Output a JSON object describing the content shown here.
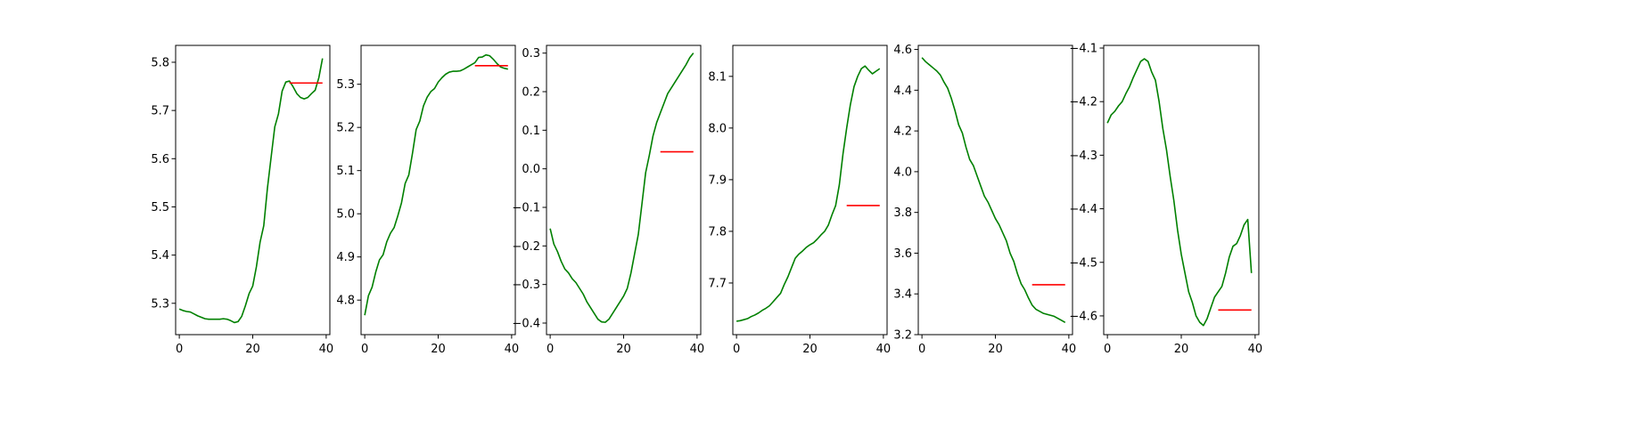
{
  "colors": {
    "series_main": "#008000",
    "series_pred": "#ff0000",
    "axis": "#000000",
    "background": "#ffffff"
  },
  "chart_data": [
    {
      "type": "line",
      "xlim": [
        -1,
        41
      ],
      "ylim": [
        5.235,
        5.835
      ],
      "xticks": [
        0,
        20,
        40
      ],
      "xtick_labels": [
        "0",
        "20",
        "40"
      ],
      "yticks": [
        5.3,
        5.4,
        5.5,
        5.6,
        5.7,
        5.8
      ],
      "ytick_labels": [
        "5.3",
        "5.4",
        "5.5",
        "5.6",
        "5.7",
        "5.8"
      ],
      "grid": false,
      "series": [
        {
          "kind": "main",
          "x": [
            0,
            1,
            2,
            3,
            4,
            5,
            6,
            7,
            8,
            9,
            10,
            11,
            12,
            13,
            14,
            15,
            16,
            17,
            18,
            19,
            20,
            21,
            22,
            23,
            24,
            25,
            26,
            27,
            28,
            29,
            30,
            31,
            32,
            33,
            34,
            35,
            36,
            37,
            38,
            39
          ],
          "y": [
            5.288,
            5.285,
            5.283,
            5.282,
            5.278,
            5.274,
            5.271,
            5.268,
            5.267,
            5.267,
            5.267,
            5.267,
            5.268,
            5.267,
            5.264,
            5.26,
            5.262,
            5.273,
            5.295,
            5.32,
            5.336,
            5.376,
            5.427,
            5.461,
            5.539,
            5.603,
            5.666,
            5.693,
            5.74,
            5.759,
            5.761,
            5.749,
            5.735,
            5.727,
            5.724,
            5.727,
            5.735,
            5.742,
            5.768,
            5.808
          ]
        },
        {
          "kind": "pred",
          "x": [
            30,
            39
          ],
          "y": [
            5.757,
            5.757
          ]
        }
      ]
    },
    {
      "type": "line",
      "xlim": [
        -1,
        41
      ],
      "ylim": [
        4.72,
        5.39
      ],
      "xticks": [
        0,
        20,
        40
      ],
      "xtick_labels": [
        "0",
        "20",
        "40"
      ],
      "yticks": [
        4.8,
        4.9,
        5.0,
        5.1,
        5.2,
        5.3
      ],
      "ytick_labels": [
        "4.8",
        "4.9",
        "5.0",
        "5.1",
        "5.2",
        "5.3"
      ],
      "grid": false,
      "series": [
        {
          "kind": "main",
          "x": [
            0,
            1,
            2,
            3,
            4,
            5,
            6,
            7,
            8,
            9,
            10,
            11,
            12,
            13,
            14,
            15,
            16,
            17,
            18,
            19,
            20,
            21,
            22,
            23,
            24,
            25,
            26,
            27,
            28,
            29,
            30,
            31,
            32,
            33,
            34,
            35,
            36,
            37,
            38,
            39
          ],
          "y": [
            4.765,
            4.81,
            4.83,
            4.865,
            4.893,
            4.905,
            4.935,
            4.955,
            4.968,
            4.995,
            5.025,
            5.07,
            5.09,
            5.14,
            5.195,
            5.215,
            5.25,
            5.27,
            5.283,
            5.29,
            5.305,
            5.315,
            5.323,
            5.328,
            5.33,
            5.33,
            5.331,
            5.335,
            5.34,
            5.345,
            5.35,
            5.362,
            5.363,
            5.368,
            5.366,
            5.358,
            5.348,
            5.34,
            5.337,
            5.335
          ]
        },
        {
          "kind": "pred",
          "x": [
            30,
            39
          ],
          "y": [
            5.343,
            5.343
          ]
        }
      ]
    },
    {
      "type": "line",
      "xlim": [
        -1,
        41
      ],
      "ylim": [
        -0.43,
        0.32
      ],
      "xticks": [
        0,
        20,
        40
      ],
      "xtick_labels": [
        "0",
        "20",
        "40"
      ],
      "yticks": [
        -0.4,
        -0.3,
        -0.2,
        -0.1,
        0.0,
        0.1,
        0.2,
        0.3
      ],
      "ytick_labels": [
        "−0.4",
        "−0.3",
        "−0.2",
        "−0.1",
        "0.0",
        "0.1",
        "0.2",
        "0.3"
      ],
      "grid": false,
      "series": [
        {
          "kind": "main",
          "x": [
            0,
            1,
            2,
            3,
            4,
            5,
            6,
            7,
            8,
            9,
            10,
            11,
            12,
            13,
            14,
            15,
            16,
            17,
            18,
            19,
            20,
            21,
            22,
            23,
            24,
            25,
            26,
            27,
            28,
            29,
            30,
            31,
            32,
            33,
            34,
            35,
            36,
            37,
            38,
            39
          ],
          "y": [
            -0.155,
            -0.195,
            -0.215,
            -0.24,
            -0.26,
            -0.27,
            -0.285,
            -0.295,
            -0.31,
            -0.325,
            -0.345,
            -0.36,
            -0.375,
            -0.39,
            -0.397,
            -0.398,
            -0.39,
            -0.375,
            -0.36,
            -0.345,
            -0.33,
            -0.31,
            -0.27,
            -0.22,
            -0.17,
            -0.09,
            -0.01,
            0.035,
            0.085,
            0.12,
            0.145,
            0.17,
            0.195,
            0.21,
            0.225,
            0.24,
            0.255,
            0.27,
            0.288,
            0.3
          ]
        },
        {
          "kind": "pred",
          "x": [
            30,
            39
          ],
          "y": [
            0.044,
            0.044
          ]
        }
      ]
    },
    {
      "type": "line",
      "xlim": [
        -1,
        41
      ],
      "ylim": [
        7.6,
        8.16
      ],
      "xticks": [
        0,
        20,
        40
      ],
      "xtick_labels": [
        "0",
        "20",
        "40"
      ],
      "yticks": [
        7.7,
        7.8,
        7.9,
        8.0,
        8.1
      ],
      "ytick_labels": [
        "7.7",
        "7.8",
        "7.9",
        "8.0",
        "8.1"
      ],
      "grid": false,
      "series": [
        {
          "kind": "main",
          "x": [
            0,
            1,
            2,
            3,
            4,
            5,
            6,
            7,
            8,
            9,
            10,
            11,
            12,
            13,
            14,
            15,
            16,
            17,
            18,
            19,
            20,
            21,
            22,
            23,
            24,
            25,
            26,
            27,
            28,
            29,
            30,
            31,
            32,
            33,
            34,
            35,
            36,
            37,
            38,
            39
          ],
          "y": [
            7.626,
            7.627,
            7.629,
            7.631,
            7.635,
            7.638,
            7.642,
            7.647,
            7.651,
            7.656,
            7.664,
            7.672,
            7.68,
            7.697,
            7.712,
            7.73,
            7.748,
            7.756,
            7.762,
            7.769,
            7.774,
            7.778,
            7.785,
            7.793,
            7.8,
            7.812,
            7.832,
            7.85,
            7.89,
            7.95,
            8.0,
            8.045,
            8.08,
            8.1,
            8.115,
            8.12,
            8.112,
            8.105,
            8.11,
            8.115
          ]
        },
        {
          "kind": "pred",
          "x": [
            30,
            39
          ],
          "y": [
            7.85,
            7.85
          ]
        }
      ]
    },
    {
      "type": "line",
      "xlim": [
        -1,
        41
      ],
      "ylim": [
        3.2,
        4.62
      ],
      "xticks": [
        0,
        20,
        40
      ],
      "xtick_labels": [
        "0",
        "20",
        "40"
      ],
      "yticks": [
        3.2,
        3.4,
        3.6,
        3.8,
        4.0,
        4.2,
        4.4,
        4.6
      ],
      "ytick_labels": [
        "3.2",
        "3.4",
        "3.6",
        "3.8",
        "4.0",
        "4.2",
        "4.4",
        "4.6"
      ],
      "grid": false,
      "series": [
        {
          "kind": "main",
          "x": [
            0,
            1,
            2,
            3,
            4,
            5,
            6,
            7,
            8,
            9,
            10,
            11,
            12,
            13,
            14,
            15,
            16,
            17,
            18,
            19,
            20,
            21,
            22,
            23,
            24,
            25,
            26,
            27,
            28,
            29,
            30,
            31,
            32,
            33,
            34,
            35,
            36,
            37,
            38,
            39
          ],
          "y": [
            4.56,
            4.54,
            4.525,
            4.51,
            4.495,
            4.475,
            4.44,
            4.41,
            4.36,
            4.3,
            4.23,
            4.19,
            4.12,
            4.06,
            4.03,
            3.98,
            3.93,
            3.88,
            3.85,
            3.81,
            3.77,
            3.74,
            3.7,
            3.66,
            3.6,
            3.56,
            3.5,
            3.45,
            3.42,
            3.38,
            3.345,
            3.325,
            3.315,
            3.305,
            3.3,
            3.295,
            3.29,
            3.28,
            3.27,
            3.26
          ]
        },
        {
          "kind": "pred",
          "x": [
            30,
            39
          ],
          "y": [
            3.445,
            3.445
          ]
        }
      ]
    },
    {
      "type": "line",
      "xlim": [
        -1,
        41
      ],
      "ylim": [
        -4.635,
        -4.095
      ],
      "xticks": [
        0,
        20,
        40
      ],
      "xtick_labels": [
        "0",
        "20",
        "40"
      ],
      "yticks": [
        -4.6,
        -4.5,
        -4.4,
        -4.3,
        -4.2,
        -4.1
      ],
      "ytick_labels": [
        "−4.6",
        "−4.5",
        "−4.4",
        "−4.3",
        "−4.2",
        "−4.1"
      ],
      "grid": false,
      "series": [
        {
          "kind": "main",
          "x": [
            0,
            1,
            2,
            3,
            4,
            5,
            6,
            7,
            8,
            9,
            10,
            11,
            12,
            13,
            14,
            15,
            16,
            17,
            18,
            19,
            20,
            21,
            22,
            23,
            24,
            25,
            26,
            27,
            28,
            29,
            30,
            31,
            32,
            33,
            34,
            35,
            36,
            37,
            38,
            39
          ],
          "y": [
            -4.24,
            -4.225,
            -4.218,
            -4.208,
            -4.2,
            -4.185,
            -4.172,
            -4.155,
            -4.14,
            -4.125,
            -4.12,
            -4.125,
            -4.145,
            -4.16,
            -4.2,
            -4.25,
            -4.29,
            -4.34,
            -4.385,
            -4.44,
            -4.485,
            -4.52,
            -4.555,
            -4.575,
            -4.6,
            -4.612,
            -4.618,
            -4.605,
            -4.585,
            -4.565,
            -4.555,
            -4.545,
            -4.52,
            -4.49,
            -4.47,
            -4.465,
            -4.45,
            -4.43,
            -4.42,
            -4.52
          ]
        },
        {
          "kind": "pred",
          "x": [
            30,
            39
          ],
          "y": [
            -4.589,
            -4.589
          ]
        }
      ]
    }
  ]
}
